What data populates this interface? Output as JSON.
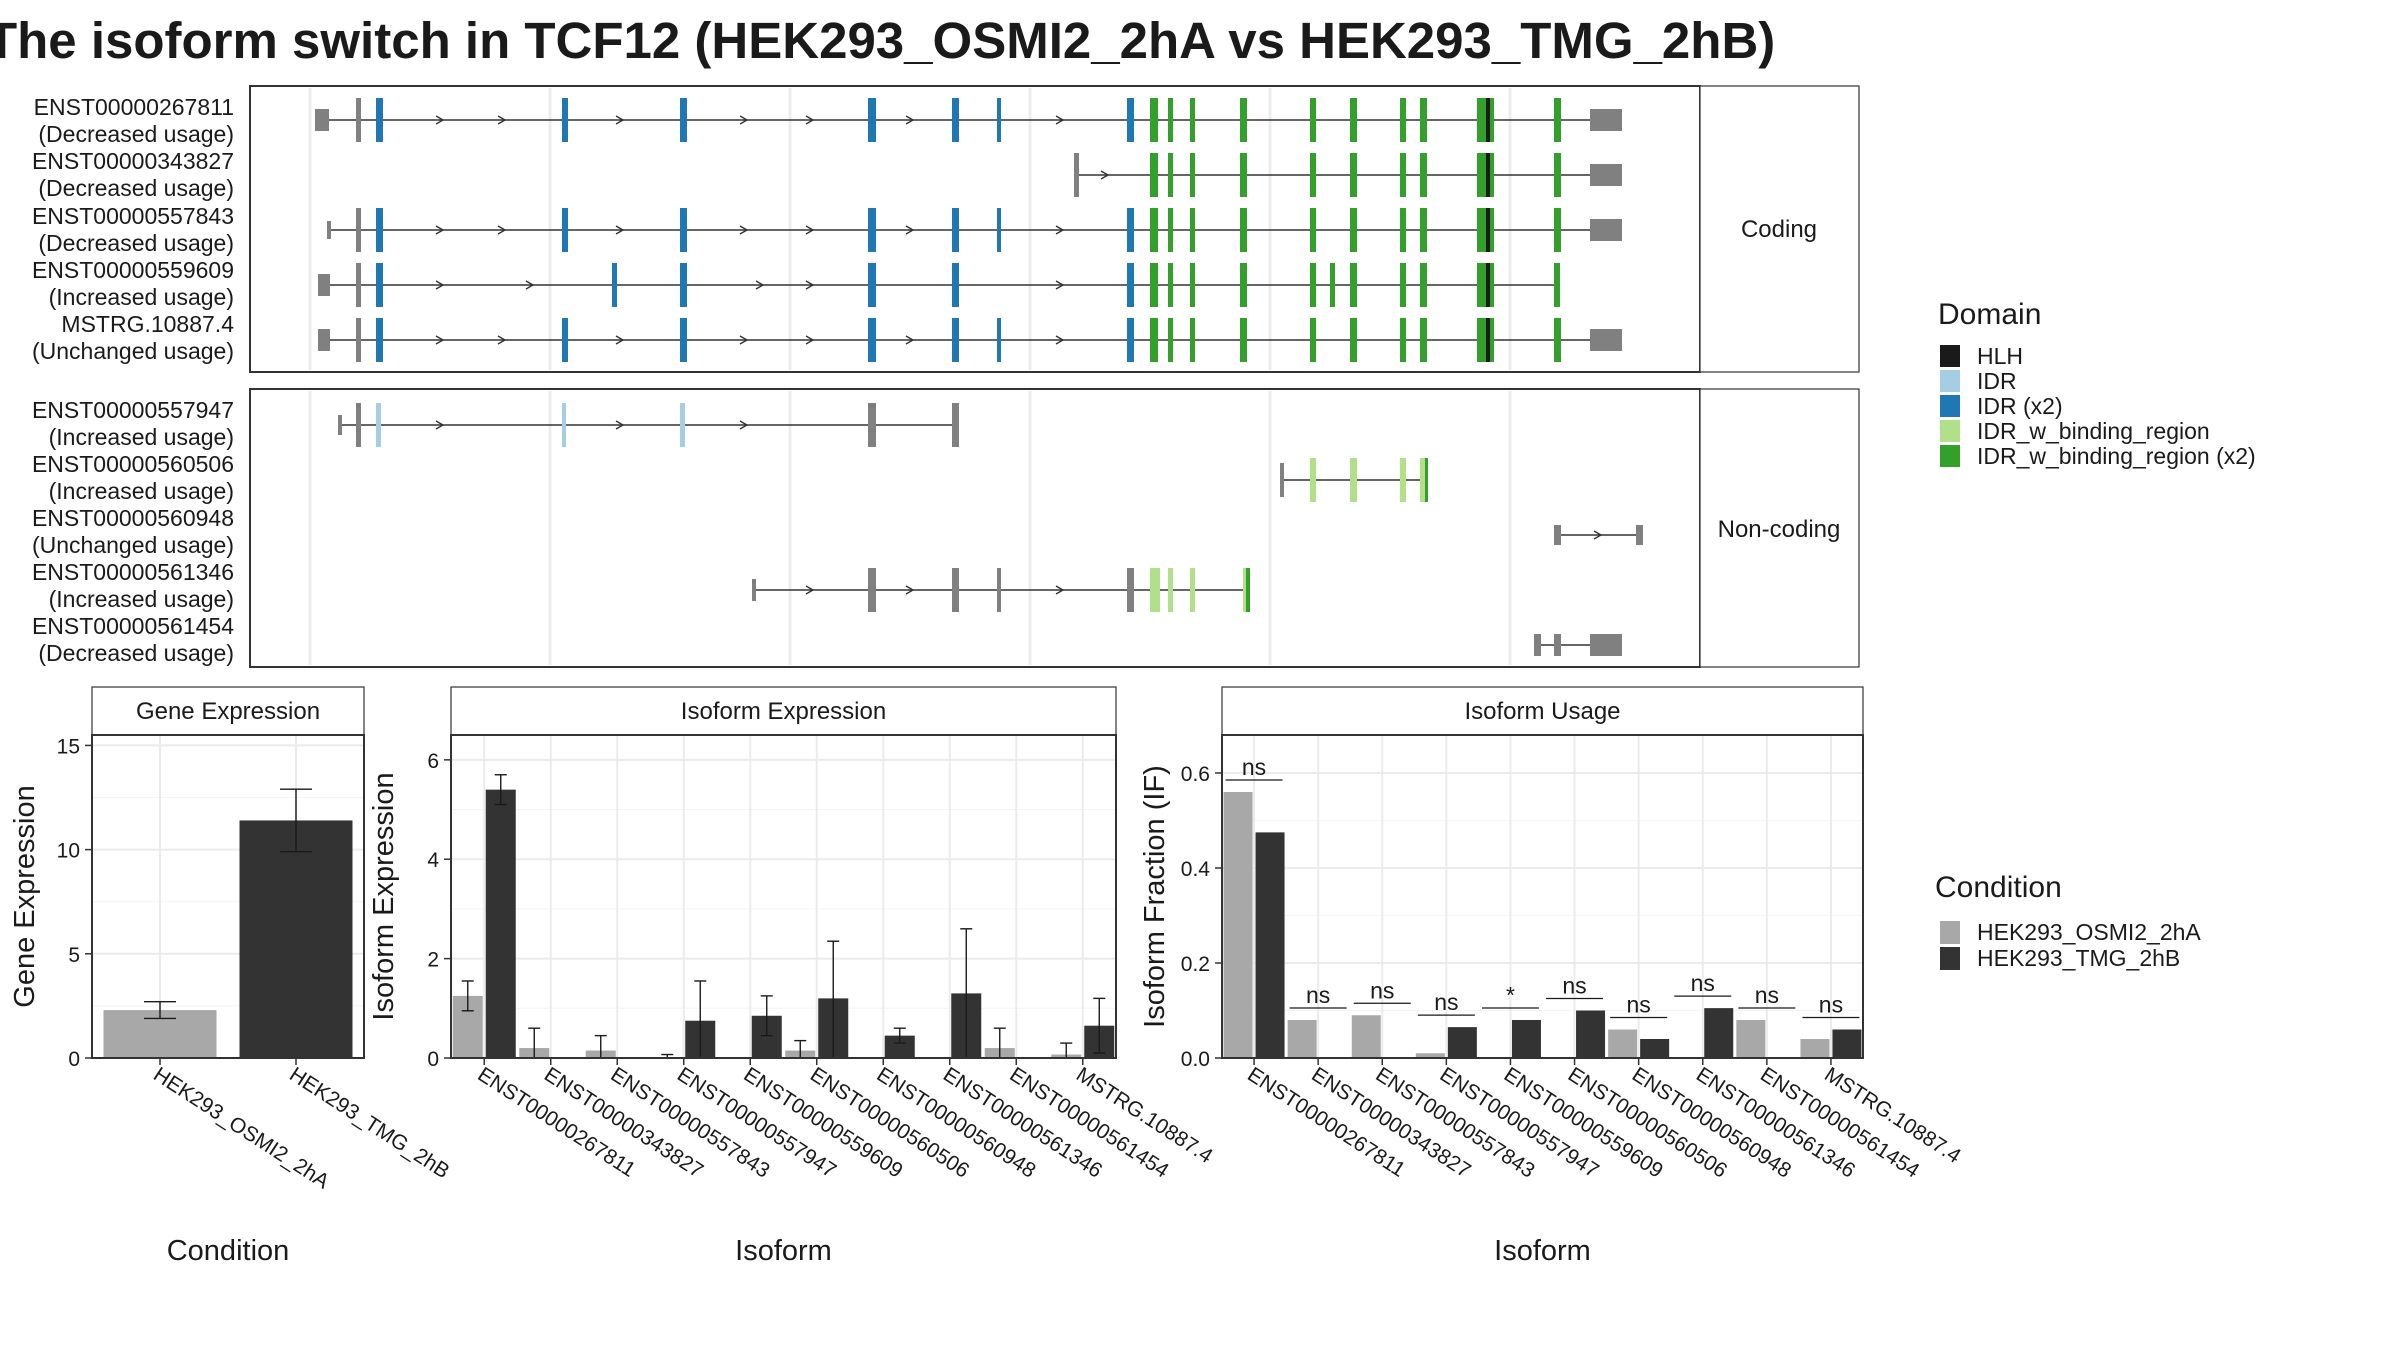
{
  "title": "The isoform switch in TCF12 (HEK293_OSMI2_2hA vs HEK293_TMG_2hB)",
  "colors": {
    "HLH": "#1a1a1a",
    "IDR": "#a6cee3",
    "IDR (x2)": "#1f78b4",
    "IDR_w_binding_region": "#b2df8a",
    "IDR_w_binding_region (x2)": "#33a02c",
    "noncoding": "#808080",
    "cond1": "#a8a8a8",
    "cond2": "#333333",
    "panel_border": "#333333",
    "grid": "#ebebeb",
    "strip_bg": "#ffffff"
  },
  "structure": {
    "groups": [
      {
        "name": "Coding",
        "isoforms": [
          {
            "id": "ENST00000267811",
            "usage": "(Decreased usage)"
          },
          {
            "id": "ENST00000343827",
            "usage": "(Decreased usage)"
          },
          {
            "id": "ENST00000557843",
            "usage": "(Decreased usage)"
          },
          {
            "id": "ENST00000559609",
            "usage": "(Increased usage)"
          },
          {
            "id": "MSTRG.10887.4",
            "usage": "(Unchanged usage)"
          }
        ]
      },
      {
        "name": "Non-coding",
        "isoforms": [
          {
            "id": "ENST00000557947",
            "usage": "(Increased usage)"
          },
          {
            "id": "ENST00000560506",
            "usage": "(Increased usage)"
          },
          {
            "id": "ENST00000560948",
            "usage": "(Unchanged usage)"
          },
          {
            "id": "ENST00000561346",
            "usage": "(Increased usage)"
          },
          {
            "id": "ENST00000561454",
            "usage": "(Decreased usage)"
          }
        ]
      }
    ]
  },
  "legend_domain": {
    "title": "Domain",
    "items": [
      "HLH",
      "IDR",
      "IDR (x2)",
      "IDR_w_binding_region",
      "IDR_w_binding_region (x2)"
    ]
  },
  "legend_condition": {
    "title": "Condition",
    "items": [
      "HEK293_OSMI2_2hA",
      "HEK293_TMG_2hB"
    ]
  },
  "chart_data": [
    {
      "type": "bar",
      "title": "Gene Expression",
      "xlabel": "Condition",
      "ylabel": "Gene Expression",
      "ylim": [
        0,
        15.5
      ],
      "yticks": [
        0,
        5,
        10,
        15
      ],
      "categories": [
        "HEK293_OSMI2_2hA",
        "HEK293_TMG_2hB"
      ],
      "values": [
        2.3,
        11.4
      ],
      "errors": [
        [
          1.9,
          2.7
        ],
        [
          9.9,
          12.9
        ]
      ]
    },
    {
      "type": "bar",
      "title": "Isoform Expression",
      "xlabel": "Isoform",
      "ylabel": "Isoform Expression",
      "ylim": [
        0,
        6.5
      ],
      "yticks": [
        0,
        2,
        4,
        6
      ],
      "categories": [
        "ENST00000267811",
        "ENST00000343827",
        "ENST00000557843",
        "ENST00000557947",
        "ENST00000559609",
        "ENST00000560506",
        "ENST00000560948",
        "ENST00000561346",
        "ENST00000561454",
        "MSTRG.10887.4"
      ],
      "series": [
        {
          "name": "HEK293_OSMI2_2hA",
          "values": [
            1.25,
            0.2,
            0.15,
            0.02,
            0.0,
            0.15,
            0.0,
            0.0,
            0.2,
            0.07
          ],
          "errors": [
            [
              0.95,
              1.55
            ],
            [
              0.0,
              0.6
            ],
            [
              0.0,
              0.45
            ],
            [
              0.0,
              0.07
            ],
            null,
            [
              0.0,
              0.35
            ],
            null,
            null,
            [
              0.0,
              0.6
            ],
            [
              0.0,
              0.3
            ]
          ]
        },
        {
          "name": "HEK293_TMG_2hB",
          "values": [
            5.4,
            0.0,
            0.0,
            0.75,
            0.85,
            1.2,
            0.45,
            1.3,
            0.0,
            0.65
          ],
          "errors": [
            [
              5.1,
              5.7
            ],
            null,
            null,
            [
              0.0,
              1.55
            ],
            [
              0.45,
              1.25
            ],
            [
              0.0,
              2.35
            ],
            [
              0.3,
              0.6
            ],
            [
              0.0,
              2.6
            ],
            null,
            [
              0.1,
              1.2
            ]
          ]
        }
      ]
    },
    {
      "type": "bar",
      "title": "Isoform Usage",
      "xlabel": "Isoform",
      "ylabel": "Isoform Fraction (IF)",
      "ylim": [
        0,
        0.68
      ],
      "yticks": [
        0.0,
        0.2,
        0.4,
        0.6
      ],
      "categories": [
        "ENST00000267811",
        "ENST00000343827",
        "ENST00000557843",
        "ENST00000557947",
        "ENST00000559609",
        "ENST00000560506",
        "ENST00000560948",
        "ENST00000561346",
        "ENST00000561454",
        "MSTRG.10887.4"
      ],
      "series": [
        {
          "name": "HEK293_OSMI2_2hA",
          "values": [
            0.56,
            0.08,
            0.09,
            0.01,
            0.0,
            0.0,
            0.06,
            0.0,
            0.08,
            0.04
          ]
        },
        {
          "name": "HEK293_TMG_2hB",
          "values": [
            0.475,
            0.0,
            0.0,
            0.065,
            0.08,
            0.1,
            0.04,
            0.105,
            0.0,
            0.06
          ]
        }
      ],
      "significance": [
        "ns",
        "ns",
        "ns",
        "ns",
        "*",
        "ns",
        "ns",
        "ns",
        "ns",
        "ns"
      ]
    }
  ]
}
